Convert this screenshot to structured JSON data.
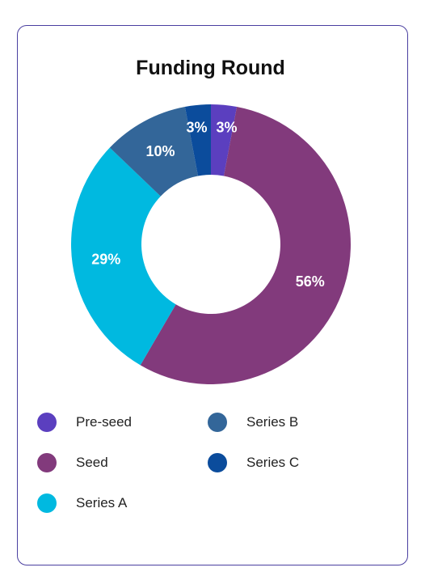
{
  "chart_data": {
    "type": "pie",
    "variant": "donut",
    "title": "Funding Round",
    "categories": [
      "Pre-seed",
      "Seed",
      "Series A",
      "Series B",
      "Series C"
    ],
    "values": [
      3,
      56,
      29,
      10,
      3
    ],
    "labels": [
      "3%",
      "56%",
      "29%",
      "10%",
      "3%"
    ],
    "colors": [
      "#5b3fbf",
      "#823a7c",
      "#00b9e0",
      "#336699",
      "#0b4c9c"
    ],
    "legend_position": "bottom"
  }
}
